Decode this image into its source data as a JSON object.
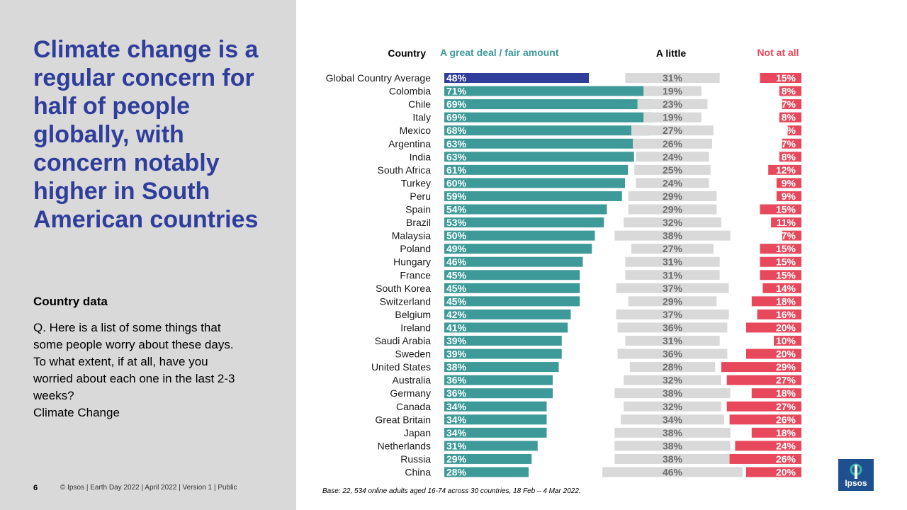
{
  "headline": "Climate change is a regular concern for half of people globally, with concern notably higher in South American countries",
  "section_label": "Country data",
  "question": "Q. Here is a list of some things that some people worry about these days.  To what extent, if at all, have you worried about each one in the last 2-3 weeks?",
  "topic": "Climate Change",
  "footer": {
    "page_number": "6",
    "text": "© Ipsos | Earth Day 2022 | April 2022 | Version 1 | Public",
    "base_note": "Base: 22, 534 online adults aged 16-74 across 30 countries,  18 Feb – 4 Mar 2022."
  },
  "logo": {
    "text": "Ipsos"
  },
  "colors": {
    "great_deal": "#3e9a99",
    "global": "#2f3d9b",
    "a_little": "#d9d9d9",
    "a_little_text": "#6e6e6e",
    "not_at_all": "#e8485c",
    "panel": "#d9d9d9",
    "headline": "#2f3d9b"
  },
  "chart_data": {
    "type": "bar",
    "title": "",
    "xlabel": "",
    "ylabel": "",
    "ylim": [
      0,
      100
    ],
    "headers": {
      "country": "Country",
      "great_deal": "A great deal / fair amount",
      "a_little": "A little",
      "not_at_all": "Not at all"
    },
    "categories": [
      "Global Country Average",
      "Colombia",
      "Chile",
      "Italy",
      "Mexico",
      "Argentina",
      "India",
      "South Africa",
      "Turkey",
      "Peru",
      "Spain",
      "Brazil",
      "Malaysia",
      "Poland",
      "Hungary",
      "France",
      "South Korea",
      "Switzerland",
      "Belgium",
      "Ireland",
      "Saudi Arabia",
      "Sweden",
      "United States",
      "Australia",
      "Germany",
      "Canada",
      "Great Britain",
      "Japan",
      "Netherlands",
      "Russia",
      "China"
    ],
    "series": [
      {
        "name": "A great deal / fair amount",
        "values": [
          48,
          71,
          69,
          69,
          68,
          63,
          63,
          61,
          60,
          59,
          54,
          53,
          50,
          49,
          46,
          45,
          45,
          45,
          42,
          41,
          39,
          39,
          38,
          36,
          36,
          34,
          34,
          34,
          31,
          29,
          28
        ]
      },
      {
        "name": "A little",
        "values": [
          31,
          19,
          23,
          19,
          27,
          26,
          24,
          25,
          24,
          29,
          29,
          32,
          38,
          27,
          31,
          31,
          37,
          29,
          37,
          36,
          31,
          36,
          28,
          32,
          38,
          32,
          34,
          38,
          38,
          38,
          46
        ]
      },
      {
        "name": "Not at all",
        "values": [
          15,
          8,
          7,
          8,
          5,
          7,
          8,
          12,
          9,
          9,
          15,
          11,
          7,
          15,
          15,
          15,
          14,
          18,
          16,
          20,
          10,
          20,
          29,
          27,
          18,
          27,
          26,
          18,
          24,
          26,
          20
        ]
      }
    ]
  }
}
